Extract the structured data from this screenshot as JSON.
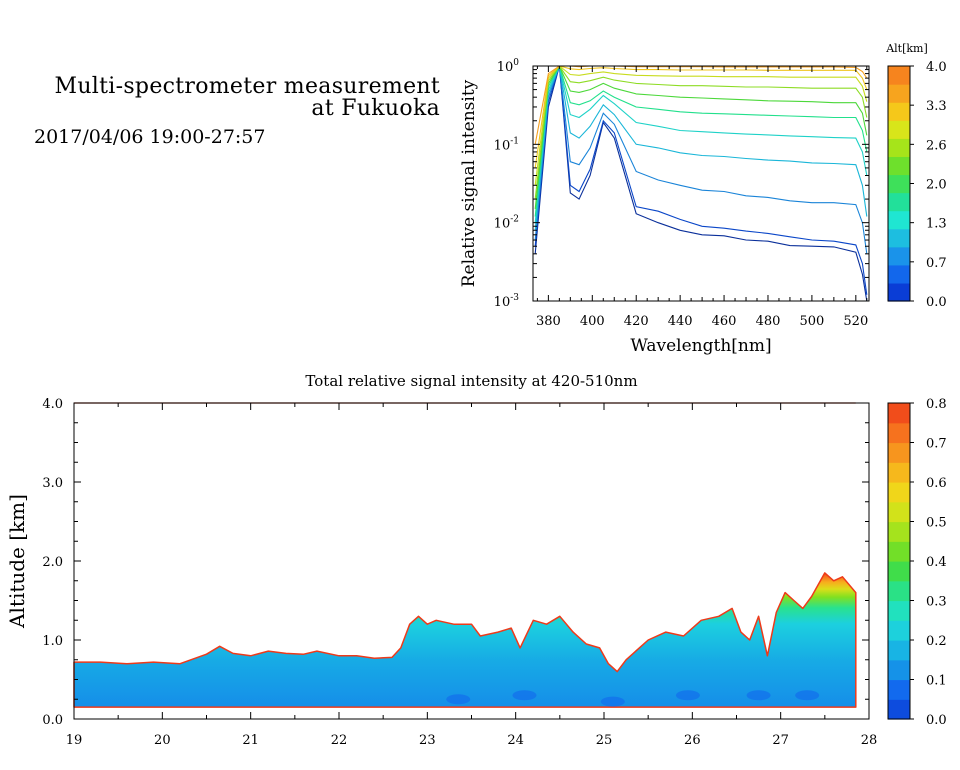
{
  "header": {
    "title_line1": "Multi-spectrometer measurement",
    "title_line2": "at Fukuoka",
    "datetime": "2017/04/06 19:00-27:57"
  },
  "chart_data": [
    {
      "type": "line",
      "title": "",
      "xlabel": "Wavelength[nm]",
      "ylabel": "Relative signal intensity",
      "yscale": "log",
      "xlim": [
        373,
        526
      ],
      "ylim": [
        0.001,
        1
      ],
      "x_ticks": [
        380,
        400,
        420,
        440,
        460,
        480,
        500,
        520
      ],
      "y_tick_labels": [
        {
          "base": "10",
          "exp": "0"
        },
        {
          "base": "10",
          "exp": "-1"
        },
        {
          "base": "10",
          "exp": "-2"
        },
        {
          "base": "10",
          "exp": "-3"
        }
      ],
      "x": [
        374,
        380,
        385,
        390,
        394,
        399,
        405,
        410,
        420,
        430,
        440,
        450,
        460,
        470,
        480,
        490,
        500,
        510,
        520,
        523,
        525
      ],
      "colorbar": {
        "title": "Alt[km]",
        "tick_labels": [
          "4.0",
          "3.3",
          "2.6",
          "2.0",
          "1.3",
          "0.7",
          "0.0"
        ],
        "colors": [
          "#0a3dd6",
          "#1267ec",
          "#1a93ea",
          "#1dbee0",
          "#1fe6d2",
          "#22e09a",
          "#3ee05a",
          "#6ee02c",
          "#a6e41a",
          "#d8e51a",
          "#f5c81a",
          "#f7a41e",
          "#f6841e"
        ]
      },
      "series": [
        {
          "altitude": 0.0,
          "color": "#0a2f9a",
          "values": [
            0.004,
            0.3,
            1,
            0.024,
            0.02,
            0.04,
            0.19,
            0.12,
            0.013,
            0.01,
            0.008,
            0.007,
            0.0068,
            0.006,
            0.0058,
            0.0051,
            0.005,
            0.0049,
            0.0042,
            0.0022,
            0.001
          ]
        },
        {
          "altitude": 0.3,
          "color": "#0a46c8",
          "values": [
            0.005,
            0.35,
            1,
            0.03,
            0.025,
            0.048,
            0.2,
            0.14,
            0.016,
            0.014,
            0.011,
            0.009,
            0.0085,
            0.0078,
            0.0073,
            0.0066,
            0.006,
            0.0058,
            0.0052,
            0.003,
            0.0012
          ]
        },
        {
          "altitude": 0.7,
          "color": "#1a84d8",
          "values": [
            0.006,
            0.4,
            1,
            0.06,
            0.055,
            0.09,
            0.25,
            0.18,
            0.045,
            0.035,
            0.03,
            0.026,
            0.025,
            0.022,
            0.021,
            0.019,
            0.018,
            0.018,
            0.017,
            0.01,
            0.004
          ]
        },
        {
          "altitude": 1.0,
          "color": "#1ab6d8",
          "values": [
            0.008,
            0.45,
            1,
            0.14,
            0.12,
            0.17,
            0.32,
            0.24,
            0.1,
            0.09,
            0.078,
            0.072,
            0.07,
            0.066,
            0.063,
            0.061,
            0.058,
            0.057,
            0.055,
            0.03,
            0.012
          ]
        },
        {
          "altitude": 1.3,
          "color": "#1fd2c8",
          "values": [
            0.01,
            0.5,
            1,
            0.24,
            0.22,
            0.28,
            0.42,
            0.33,
            0.19,
            0.17,
            0.15,
            0.145,
            0.14,
            0.135,
            0.132,
            0.128,
            0.125,
            0.122,
            0.12,
            0.08,
            0.04
          ]
        },
        {
          "altitude": 1.7,
          "color": "#22e08c",
          "values": [
            0.012,
            0.55,
            1,
            0.34,
            0.32,
            0.36,
            0.48,
            0.4,
            0.3,
            0.28,
            0.26,
            0.25,
            0.245,
            0.24,
            0.235,
            0.23,
            0.225,
            0.22,
            0.22,
            0.15,
            0.08
          ]
        },
        {
          "altitude": 2.0,
          "color": "#4cd83a",
          "values": [
            0.015,
            0.6,
            1,
            0.48,
            0.46,
            0.5,
            0.6,
            0.52,
            0.44,
            0.42,
            0.4,
            0.39,
            0.38,
            0.37,
            0.36,
            0.355,
            0.35,
            0.34,
            0.34,
            0.25,
            0.13
          ]
        },
        {
          "altitude": 2.3,
          "color": "#8edc24",
          "values": [
            0.02,
            0.65,
            1,
            0.63,
            0.61,
            0.65,
            0.72,
            0.66,
            0.6,
            0.58,
            0.56,
            0.56,
            0.55,
            0.54,
            0.54,
            0.53,
            0.52,
            0.52,
            0.52,
            0.4,
            0.22
          ]
        },
        {
          "altitude": 2.6,
          "color": "#c8dc1e",
          "values": [
            0.03,
            0.7,
            1,
            0.78,
            0.76,
            0.8,
            0.84,
            0.8,
            0.76,
            0.75,
            0.74,
            0.74,
            0.73,
            0.73,
            0.73,
            0.72,
            0.72,
            0.72,
            0.72,
            0.55,
            0.35
          ]
        },
        {
          "altitude": 3.0,
          "color": "#f0c41e",
          "values": [
            0.05,
            0.75,
            1,
            0.92,
            0.9,
            0.93,
            0.95,
            0.93,
            0.9,
            0.9,
            0.89,
            0.89,
            0.89,
            0.89,
            0.88,
            0.88,
            0.88,
            0.88,
            0.88,
            0.7,
            0.5
          ]
        },
        {
          "altitude": 3.6,
          "color": "#f6a020",
          "values": [
            0.1,
            0.8,
            1,
            1,
            0.98,
            1,
            1,
            1,
            0.98,
            0.98,
            0.98,
            0.98,
            0.97,
            0.97,
            0.97,
            0.97,
            0.97,
            0.97,
            0.96,
            0.85,
            0.7
          ]
        }
      ]
    },
    {
      "type": "heatmap",
      "title": "Total relative signal intensity at 420-510nm",
      "xlabel": "",
      "ylabel": "Altitude [km]",
      "xlim": [
        19,
        28
      ],
      "ylim": [
        0,
        4
      ],
      "x_ticks": [
        19,
        20,
        21,
        22,
        23,
        24,
        25,
        26,
        27,
        28
      ],
      "y_ticks": [
        "0.0",
        "1.0",
        "2.0",
        "3.0",
        "4.0"
      ],
      "data_x_range": [
        19.0,
        27.85
      ],
      "data_y_min": 0.15,
      "top_line_altitude": 4.0,
      "boundary": {
        "x": [
          19.0,
          19.3,
          19.6,
          19.9,
          20.2,
          20.5,
          20.65,
          20.8,
          21.0,
          21.2,
          21.4,
          21.6,
          21.75,
          22.0,
          22.2,
          22.4,
          22.6,
          22.7,
          22.8,
          22.9,
          23.0,
          23.1,
          23.3,
          23.5,
          23.6,
          23.8,
          23.95,
          24.05,
          24.2,
          24.35,
          24.5,
          24.65,
          24.8,
          24.95,
          25.05,
          25.15,
          25.25,
          25.35,
          25.5,
          25.7,
          25.9,
          26.1,
          26.3,
          26.45,
          26.55,
          26.65,
          26.75,
          26.85,
          26.95,
          27.05,
          27.15,
          27.25,
          27.35,
          27.5,
          27.6,
          27.7,
          27.85
        ],
        "altitude": [
          0.72,
          0.72,
          0.7,
          0.72,
          0.7,
          0.82,
          0.92,
          0.83,
          0.8,
          0.86,
          0.83,
          0.82,
          0.86,
          0.8,
          0.8,
          0.77,
          0.78,
          0.9,
          1.2,
          1.3,
          1.2,
          1.25,
          1.2,
          1.2,
          1.05,
          1.1,
          1.15,
          0.9,
          1.25,
          1.2,
          1.3,
          1.1,
          0.95,
          0.9,
          0.7,
          0.6,
          0.75,
          0.85,
          1.0,
          1.1,
          1.05,
          1.25,
          1.3,
          1.4,
          1.1,
          1.0,
          1.3,
          0.8,
          1.35,
          1.6,
          1.5,
          1.4,
          1.55,
          1.85,
          1.75,
          1.8,
          1.6
        ]
      },
      "dip_points": [
        {
          "x": 23.35,
          "y": 0.25
        },
        {
          "x": 24.1,
          "y": 0.3
        },
        {
          "x": 25.1,
          "y": 0.22
        },
        {
          "x": 25.95,
          "y": 0.3
        },
        {
          "x": 26.75,
          "y": 0.3
        },
        {
          "x": 27.3,
          "y": 0.3
        }
      ],
      "colorbar": {
        "title": "",
        "range": [
          0,
          0.8
        ],
        "tick_labels": [
          "0.8",
          "0.7",
          "0.6",
          "0.5",
          "0.4",
          "0.3",
          "0.2",
          "0.1",
          "0.0"
        ],
        "stops": [
          "#0a3dd6",
          "#1268ee",
          "#16a2e6",
          "#1ccfe0",
          "#22e6b4",
          "#34dc52",
          "#7ee020",
          "#c8e61a",
          "#f4d41a",
          "#f8a41e",
          "#f6701e",
          "#ee3a1a"
        ]
      }
    }
  ]
}
